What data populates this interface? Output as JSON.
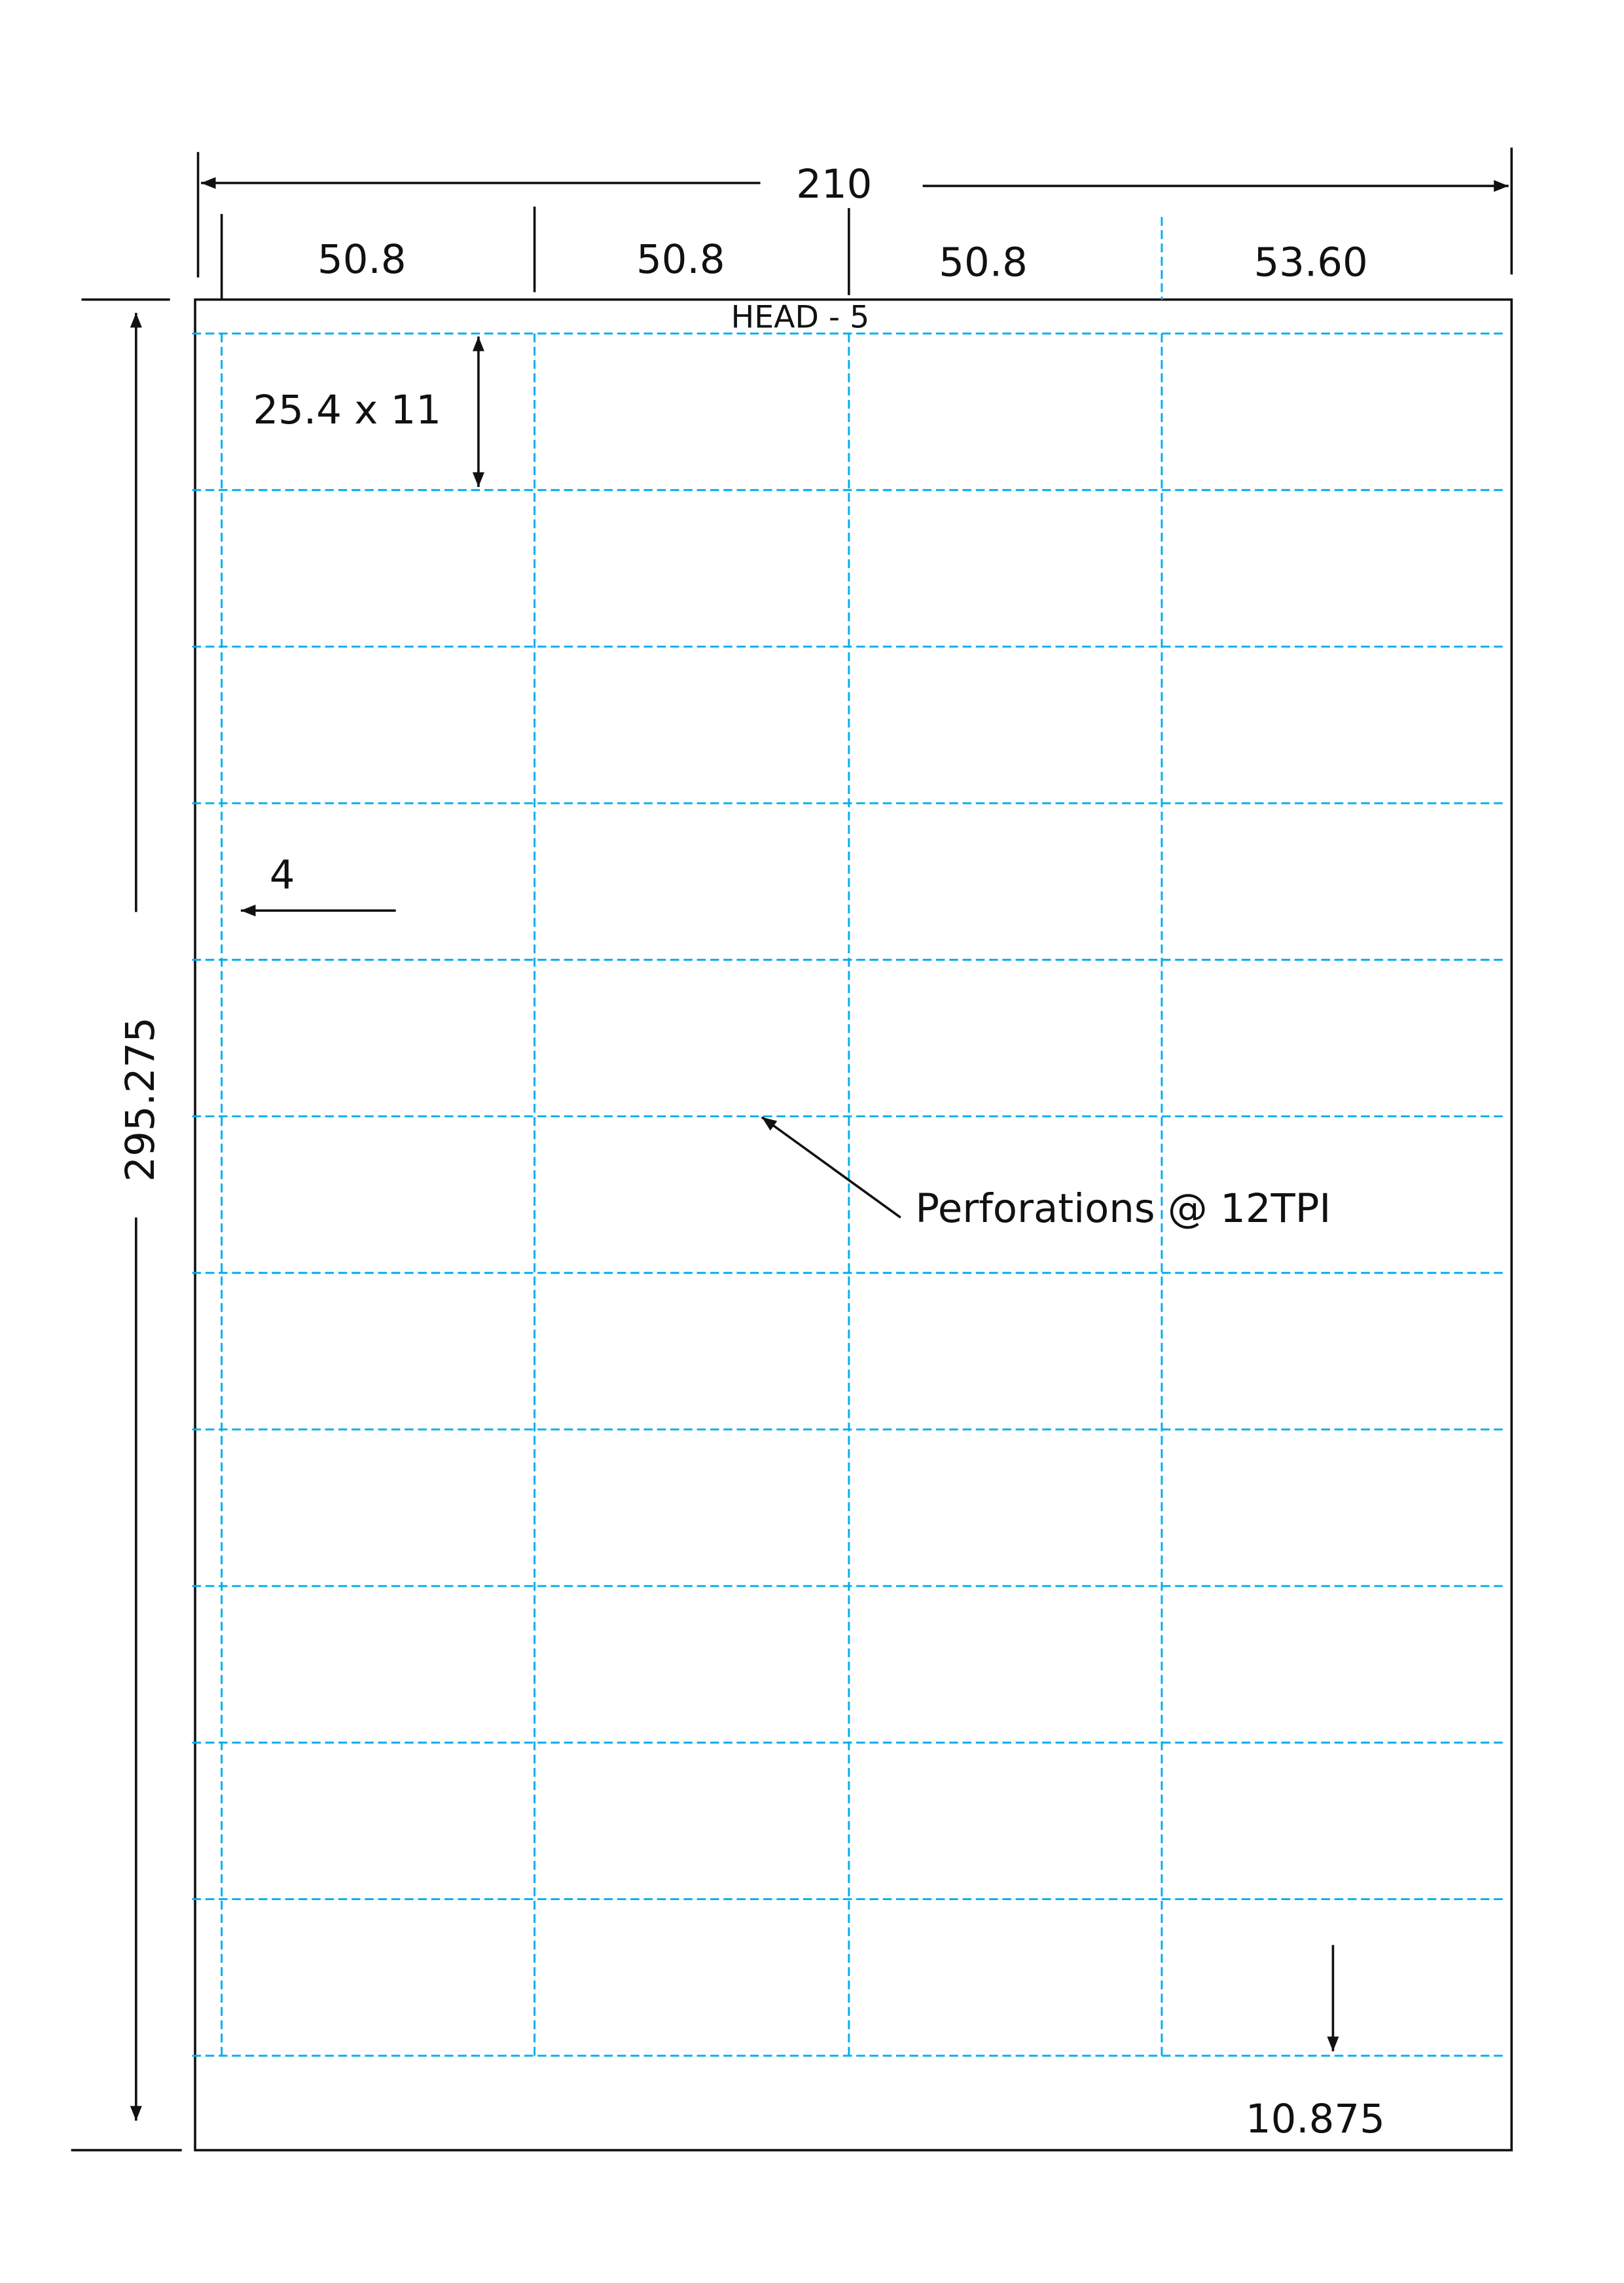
{
  "colors": {
    "perforation": "#00aeef",
    "outline": "#111111"
  },
  "dimensions": {
    "total_width": "210",
    "columns": [
      "50.8",
      "50.8",
      "50.8",
      "53.60"
    ],
    "head": "HEAD - 5",
    "label_size": "25.4 x 11",
    "side_margin": "4",
    "total_height": "295.275",
    "bottom_margin": "10.875"
  },
  "annotation": {
    "perforations": "Perforations @ 12TPI"
  },
  "grid": {
    "columns": 4,
    "rows": 11
  }
}
